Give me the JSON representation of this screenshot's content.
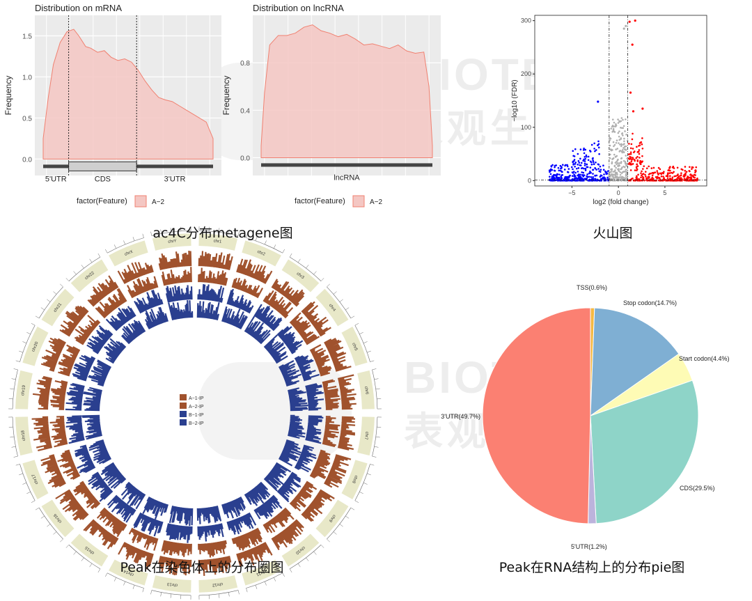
{
  "watermark": {
    "brand": "BIOTEK",
    "cn": "表观生物"
  },
  "colors": {
    "fill": "#f4c7c3",
    "stroke": "#f08070",
    "panel_bg": "#ebebeb",
    "up": "#ff0000",
    "down": "#0000ff",
    "ns": "#b0b0b0",
    "brown": "#a0522d",
    "navy": "#2a3f8f",
    "chrom": "#e8e8c8"
  },
  "captions": {
    "metagene": "ac4C分布metagene图",
    "volcano": "火山图",
    "circos": "Peak在染色体上的分布圈图",
    "pie": "Peak在RNA结构上的分布pie图"
  },
  "chart_data": [
    {
      "type": "area",
      "title": "Distribution on mRNA",
      "ylabel": "Frequency",
      "xlabel": "",
      "ylim": [
        -0.2,
        1.75
      ],
      "yticks": [
        "0.0",
        "0.5",
        "1.0",
        "1.5"
      ],
      "ytick_values": [
        0,
        0.5,
        1.0,
        1.5
      ],
      "x": [
        0,
        0.03,
        0.06,
        0.1,
        0.14,
        0.18,
        0.21,
        0.25,
        0.28,
        0.32,
        0.36,
        0.4,
        0.44,
        0.48,
        0.52,
        0.56,
        0.6,
        0.64,
        0.68,
        0.72,
        0.76,
        0.8,
        0.84,
        0.88,
        0.92,
        0.96,
        1.0
      ],
      "y": [
        0.25,
        0.75,
        1.15,
        1.42,
        1.55,
        1.58,
        1.5,
        1.37,
        1.35,
        1.3,
        1.32,
        1.24,
        1.2,
        1.22,
        1.18,
        1.08,
        0.95,
        0.84,
        0.75,
        0.72,
        0.7,
        0.65,
        0.6,
        0.55,
        0.5,
        0.45,
        0.25
      ],
      "features": [
        "5'UTR",
        "CDS",
        "3'UTR"
      ],
      "boundaries": [
        0.15,
        0.55
      ],
      "legend": {
        "title": "factor(Feature)",
        "label": "A−2"
      }
    },
    {
      "type": "area",
      "title": "Distribution on lncRNA",
      "ylabel": "Frequency",
      "xlabel": "",
      "ylim": [
        -0.15,
        1.2
      ],
      "yticks": [
        "0.0",
        "0.4",
        "0.8"
      ],
      "ytick_values": [
        0,
        0.4,
        0.8
      ],
      "x": [
        0,
        0.02,
        0.05,
        0.1,
        0.15,
        0.2,
        0.25,
        0.3,
        0.35,
        0.4,
        0.45,
        0.5,
        0.55,
        0.6,
        0.65,
        0.7,
        0.75,
        0.8,
        0.85,
        0.9,
        0.95,
        0.98,
        1.0
      ],
      "y": [
        0.1,
        0.55,
        0.95,
        1.03,
        1.03,
        1.05,
        1.1,
        1.12,
        1.07,
        1.05,
        1.02,
        1.04,
        1.0,
        0.95,
        0.96,
        0.94,
        0.92,
        0.95,
        0.9,
        0.88,
        0.89,
        0.6,
        0.1
      ],
      "features": [
        "lncRNA"
      ],
      "legend": {
        "title": "factor(Feature)",
        "label": "A−2"
      }
    },
    {
      "type": "scatter",
      "title": "",
      "xlabel": "log2 (fold change)",
      "ylabel": "−log10 (FDR)",
      "xlim": [
        -9,
        9.5
      ],
      "ylim": [
        -10,
        310
      ],
      "xticks": [
        "−5",
        "0",
        "5"
      ],
      "xtick_values": [
        -5,
        0,
        5
      ],
      "yticks": [
        "0",
        "100",
        "200",
        "300"
      ],
      "ytick_values": [
        0,
        100,
        200,
        300
      ],
      "thresholds": {
        "fc": [
          -1,
          1
        ],
        "fdr": 1.3
      },
      "highlight_points": [
        [
          1.8,
          300
        ],
        [
          1.2,
          298
        ],
        [
          1.5,
          255
        ],
        [
          1.3,
          165
        ],
        [
          2.6,
          135
        ],
        [
          1.6,
          130
        ],
        [
          -2.2,
          148
        ],
        [
          0.8,
          290
        ],
        [
          0.6,
          285
        ]
      ]
    },
    {
      "type": "pie",
      "title": "",
      "slices": [
        {
          "label": "TSS(0.6%)",
          "value": 0.6,
          "color": "#f5b942"
        },
        {
          "label": "Stop codon(14.7%)",
          "value": 14.7,
          "color": "#7fafd3"
        },
        {
          "label": "Start codon(4.4%)",
          "value": 4.4,
          "color": "#fefbb5"
        },
        {
          "label": "CDS(29.5%)",
          "value": 29.5,
          "color": "#8ed4c8"
        },
        {
          "label": "5'UTR(1.2%)",
          "value": 1.2,
          "color": "#bcb3dc"
        },
        {
          "label": "3'UTR(49.7%)",
          "value": 49.7,
          "color": "#fb8072"
        }
      ]
    }
  ],
  "circos": {
    "legend": [
      "A−1-IP",
      "A−2-IP",
      "B−1-IP",
      "B−2-IP"
    ],
    "legend_colors": [
      "#a0522d",
      "#a0522d",
      "#2a3f8f",
      "#2a3f8f"
    ],
    "chromosomes": [
      "chr1",
      "chr2",
      "chr3",
      "chr4",
      "chr5",
      "chr6",
      "chr7",
      "chr8",
      "chr9",
      "chr10",
      "chr11",
      "chr12",
      "chr13",
      "chr14",
      "chr15",
      "chr16",
      "chr17",
      "chr18",
      "chr19",
      "chr20",
      "chr21",
      "chr22",
      "chrX",
      "chrY"
    ]
  }
}
